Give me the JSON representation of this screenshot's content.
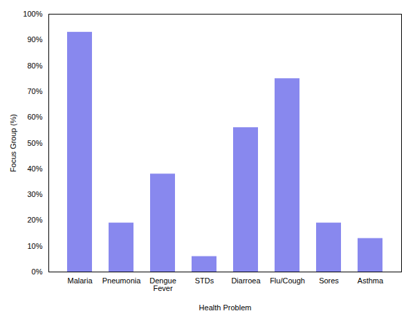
{
  "chart_data": {
    "type": "bar",
    "categories": [
      "Malaria",
      "Pneumonia",
      "Dengue\nFever",
      "STDs",
      "Diarroea",
      "Flu/Cough",
      "Sores",
      "Asthma"
    ],
    "values": [
      93,
      19,
      38,
      6,
      56,
      75,
      19,
      13
    ],
    "color": "#8888ee",
    "xlabel": "Health Problem",
    "ylabel": "Focus Group (%)",
    "ylim": [
      0,
      100
    ],
    "yticks": [
      {
        "value": 0,
        "label": "0%"
      },
      {
        "value": 10,
        "label": "10%"
      },
      {
        "value": 20,
        "label": "20%"
      },
      {
        "value": 30,
        "label": "30%"
      },
      {
        "value": 40,
        "label": "40%"
      },
      {
        "value": 50,
        "label": "50%"
      },
      {
        "value": 60,
        "label": "60%"
      },
      {
        "value": 70,
        "label": "70%"
      },
      {
        "value": 80,
        "label": "80%"
      },
      {
        "value": 90,
        "label": "90%"
      },
      {
        "value": 100,
        "label": "100%"
      }
    ],
    "grid": false
  }
}
